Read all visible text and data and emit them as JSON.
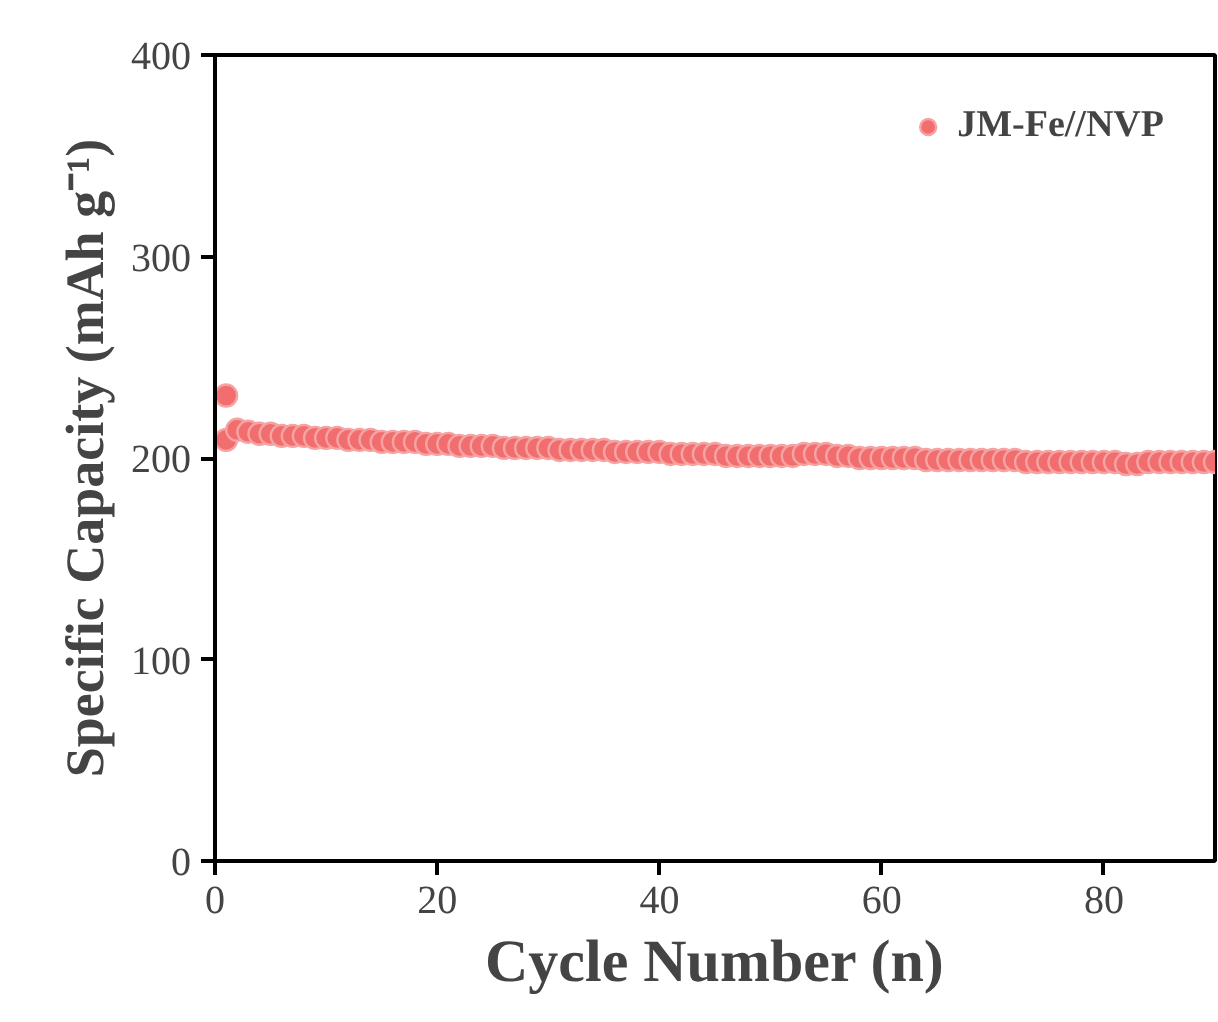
{
  "chart_data": {
    "type": "scatter",
    "xlabel": "Cycle Number (n)",
    "ylabel": "Specific Capacity (mAh g⁻¹)",
    "xlim": [
      0,
      90
    ],
    "ylim": [
      0,
      400
    ],
    "xticks": [
      0,
      20,
      40,
      60,
      80
    ],
    "yticks": [
      0,
      100,
      200,
      300,
      400
    ],
    "legend": "top right",
    "marker": "circle",
    "grid": false,
    "series": [
      {
        "name": "JM-Fe//NVP",
        "color": "#f26d6d",
        "x": [
          1,
          1,
          2,
          3,
          4,
          5,
          6,
          7,
          8,
          9,
          10,
          11,
          12,
          13,
          14,
          15,
          16,
          17,
          18,
          19,
          20,
          21,
          22,
          23,
          24,
          25,
          26,
          27,
          28,
          29,
          30,
          31,
          32,
          33,
          34,
          35,
          36,
          37,
          38,
          39,
          40,
          41,
          42,
          43,
          44,
          45,
          46,
          47,
          48,
          49,
          50,
          51,
          52,
          53,
          54,
          55,
          56,
          57,
          58,
          59,
          60,
          61,
          62,
          63,
          64,
          65,
          66,
          67,
          68,
          69,
          70,
          71,
          72,
          73,
          74,
          75,
          76,
          77,
          78,
          79,
          80,
          81,
          82,
          83,
          84,
          85,
          86,
          87,
          88,
          89,
          90
        ],
        "values": [
          231,
          209,
          214,
          213,
          212,
          212,
          211,
          211,
          211,
          210,
          210,
          210,
          209,
          209,
          209,
          208,
          208,
          208,
          208,
          207,
          207,
          207,
          206,
          206,
          206,
          206,
          205,
          205,
          205,
          205,
          205,
          204,
          204,
          204,
          204,
          204,
          203,
          203,
          203,
          203,
          203,
          202,
          202,
          202,
          202,
          202,
          201,
          201,
          201,
          201,
          201,
          201,
          201,
          202,
          202,
          202,
          201,
          201,
          200,
          200,
          200,
          200,
          200,
          200,
          199,
          199,
          199,
          199,
          199,
          199,
          199,
          199,
          199,
          198,
          198,
          198,
          198,
          198,
          198,
          198,
          198,
          198,
          197,
          197,
          198,
          198,
          198,
          198,
          198,
          198,
          198
        ]
      }
    ]
  }
}
